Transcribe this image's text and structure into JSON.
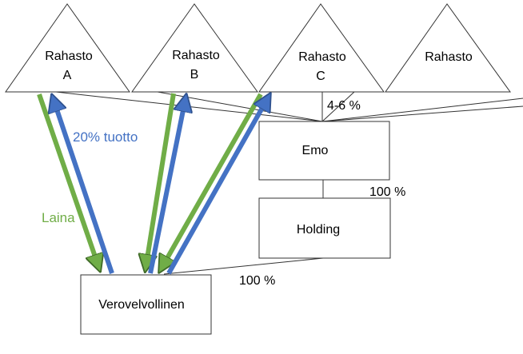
{
  "funds": [
    {
      "line1": "Rahasto",
      "line2": "A"
    },
    {
      "line1": "Rahasto",
      "line2": "B"
    },
    {
      "line1": "Rahasto",
      "line2": "C"
    },
    {
      "line1": "Rahasto",
      "line2": ""
    }
  ],
  "boxes": {
    "emo": "Emo",
    "holding": "Holding",
    "taxpayer": "Verovelvollinen"
  },
  "labels": {
    "fund_ownership": "4-6 %",
    "emo_holding": "100 %",
    "holding_taxpayer": "100 %",
    "return": "20% tuotto",
    "loan": "Laina"
  },
  "colors": {
    "loan": "#70ad47",
    "return": "#4472c4"
  }
}
